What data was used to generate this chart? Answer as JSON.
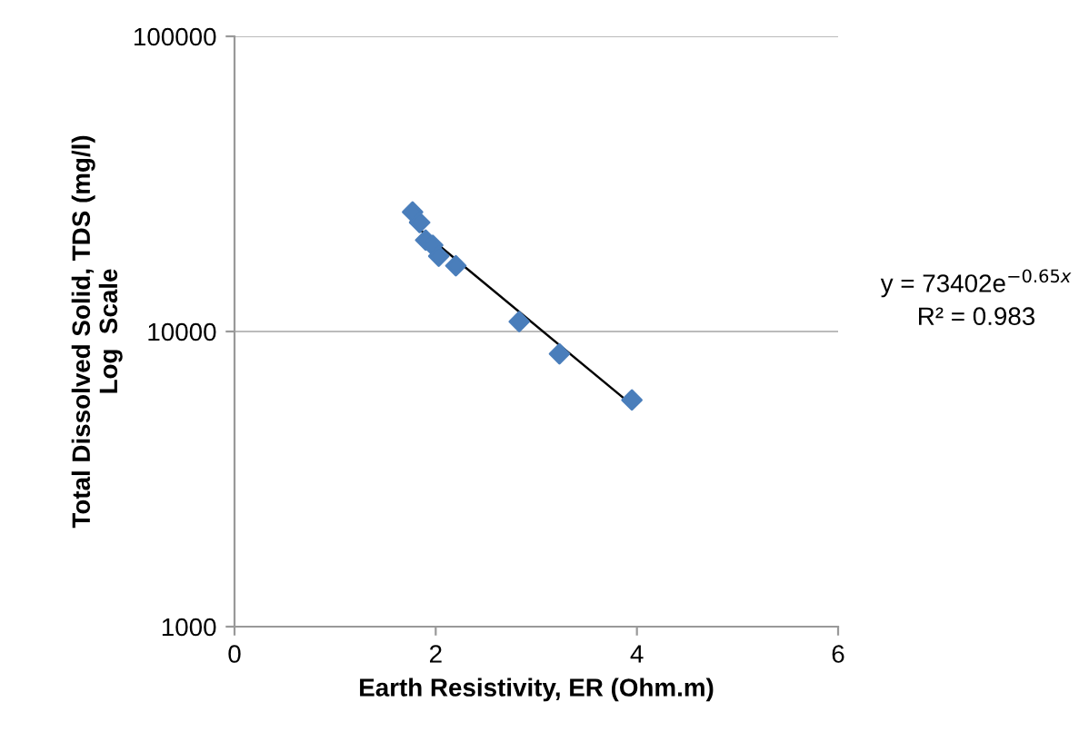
{
  "chart_data": {
    "type": "scatter",
    "xlabel": "Earth Resistivity, ER (Ohm.m)",
    "ylabel": "Total Dissolved Solid, TDS (mg/l)\nLog  Scale",
    "series": [
      {
        "color": "#4a7ebb",
        "marker": "diamond",
        "x": [
          1.77,
          1.84,
          1.9,
          1.97,
          2.03,
          2.2,
          2.83,
          3.23,
          3.95
        ],
        "values": [
          25400,
          23400,
          20400,
          19600,
          18000,
          16700,
          10800,
          8400,
          5860
        ]
      },
      {
        "type": "line",
        "color": "#000000",
        "marker": "none",
        "line_style": "solid",
        "x": [
          1.75,
          3.95
        ],
        "values": [
          23500,
          5640
        ]
      }
    ],
    "annotations": [
      "y = 73402e$^{−0.65x}$\nR² = 0.983"
    ],
    "xlim": [
      0,
      6
    ],
    "xticks": [
      0,
      2,
      4,
      6
    ],
    "ylim": [
      1000,
      100000
    ],
    "yticks": [
      1000,
      10000,
      100000
    ],
    "log": "y",
    "grid": "y",
    "legend": false
  }
}
